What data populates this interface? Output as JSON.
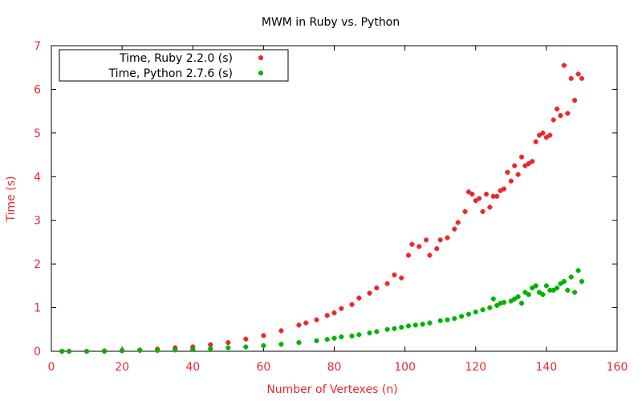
{
  "chart_data": {
    "type": "scatter",
    "title": "MWM in Ruby vs. Python",
    "xlabel": "Number of Vertexes (n)",
    "ylabel": "Time (s)",
    "xlim": [
      0,
      160
    ],
    "ylim": [
      0,
      7
    ],
    "x_ticks": [
      "0",
      "20",
      "40",
      "60",
      "80",
      "100",
      "120",
      "140",
      "160"
    ],
    "y_ticks": [
      "0",
      "1",
      "2",
      "3",
      "4",
      "5",
      "6",
      "7"
    ],
    "grid": false,
    "legend_position": "top-left",
    "axis_label_color": "#e8292e",
    "series": [
      {
        "name": "Time, Ruby 2.2.0 (s)",
        "color": "#e8292e",
        "points": [
          [
            3,
            0.0
          ],
          [
            5,
            0.0
          ],
          [
            10,
            0.0
          ],
          [
            15,
            0.01
          ],
          [
            20,
            0.02
          ],
          [
            25,
            0.03
          ],
          [
            30,
            0.05
          ],
          [
            35,
            0.08
          ],
          [
            40,
            0.1
          ],
          [
            45,
            0.15
          ],
          [
            50,
            0.2
          ],
          [
            55,
            0.28
          ],
          [
            60,
            0.36
          ],
          [
            65,
            0.47
          ],
          [
            70,
            0.6
          ],
          [
            72,
            0.65
          ],
          [
            75,
            0.72
          ],
          [
            78,
            0.82
          ],
          [
            80,
            0.88
          ],
          [
            82,
            0.98
          ],
          [
            85,
            1.07
          ],
          [
            87,
            1.22
          ],
          [
            90,
            1.33
          ],
          [
            92,
            1.45
          ],
          [
            95,
            1.55
          ],
          [
            97,
            1.75
          ],
          [
            99,
            1.68
          ],
          [
            101,
            2.2
          ],
          [
            102,
            2.45
          ],
          [
            104,
            2.4
          ],
          [
            106,
            2.55
          ],
          [
            107,
            2.2
          ],
          [
            109,
            2.35
          ],
          [
            110,
            2.55
          ],
          [
            112,
            2.6
          ],
          [
            114,
            2.8
          ],
          [
            115,
            2.95
          ],
          [
            117,
            3.2
          ],
          [
            118,
            3.65
          ],
          [
            119,
            3.6
          ],
          [
            120,
            3.45
          ],
          [
            121,
            3.5
          ],
          [
            122,
            3.2
          ],
          [
            123,
            3.6
          ],
          [
            124,
            3.3
          ],
          [
            125,
            3.55
          ],
          [
            126,
            3.55
          ],
          [
            127,
            3.68
          ],
          [
            128,
            3.72
          ],
          [
            129,
            4.1
          ],
          [
            130,
            3.9
          ],
          [
            131,
            4.25
          ],
          [
            132,
            4.05
          ],
          [
            133,
            4.45
          ],
          [
            134,
            4.25
          ],
          [
            135,
            4.3
          ],
          [
            136,
            4.35
          ],
          [
            137,
            4.8
          ],
          [
            138,
            4.95
          ],
          [
            139,
            5.0
          ],
          [
            140,
            4.9
          ],
          [
            141,
            4.95
          ],
          [
            142,
            5.3
          ],
          [
            143,
            5.55
          ],
          [
            144,
            5.4
          ],
          [
            145,
            6.55
          ],
          [
            146,
            5.45
          ],
          [
            147,
            6.25
          ],
          [
            148,
            5.75
          ],
          [
            149,
            6.35
          ],
          [
            150,
            6.25
          ]
        ]
      },
      {
        "name": "Time, Python 2.7.6 (s)",
        "color": "#00b300",
        "points": [
          [
            3,
            0.0
          ],
          [
            5,
            0.0
          ],
          [
            10,
            0.0
          ],
          [
            15,
            0.0
          ],
          [
            20,
            0.01
          ],
          [
            25,
            0.02
          ],
          [
            30,
            0.02
          ],
          [
            35,
            0.03
          ],
          [
            40,
            0.04
          ],
          [
            45,
            0.06
          ],
          [
            50,
            0.08
          ],
          [
            55,
            0.1
          ],
          [
            60,
            0.13
          ],
          [
            65,
            0.16
          ],
          [
            70,
            0.2
          ],
          [
            75,
            0.24
          ],
          [
            78,
            0.27
          ],
          [
            80,
            0.3
          ],
          [
            82,
            0.33
          ],
          [
            85,
            0.35
          ],
          [
            87,
            0.38
          ],
          [
            90,
            0.42
          ],
          [
            92,
            0.45
          ],
          [
            95,
            0.5
          ],
          [
            97,
            0.52
          ],
          [
            99,
            0.55
          ],
          [
            101,
            0.58
          ],
          [
            103,
            0.6
          ],
          [
            105,
            0.62
          ],
          [
            107,
            0.65
          ],
          [
            110,
            0.7
          ],
          [
            112,
            0.72
          ],
          [
            114,
            0.75
          ],
          [
            116,
            0.8
          ],
          [
            118,
            0.85
          ],
          [
            120,
            0.9
          ],
          [
            122,
            0.95
          ],
          [
            124,
            1.0
          ],
          [
            125,
            1.2
          ],
          [
            126,
            1.05
          ],
          [
            127,
            1.1
          ],
          [
            128,
            1.12
          ],
          [
            130,
            1.15
          ],
          [
            131,
            1.2
          ],
          [
            132,
            1.25
          ],
          [
            133,
            1.1
          ],
          [
            134,
            1.35
          ],
          [
            135,
            1.3
          ],
          [
            136,
            1.45
          ],
          [
            137,
            1.5
          ],
          [
            138,
            1.35
          ],
          [
            139,
            1.3
          ],
          [
            140,
            1.5
          ],
          [
            141,
            1.4
          ],
          [
            142,
            1.4
          ],
          [
            143,
            1.45
          ],
          [
            144,
            1.55
          ],
          [
            145,
            1.6
          ],
          [
            146,
            1.4
          ],
          [
            147,
            1.7
          ],
          [
            148,
            1.35
          ],
          [
            149,
            1.85
          ],
          [
            150,
            1.6
          ]
        ]
      }
    ]
  }
}
